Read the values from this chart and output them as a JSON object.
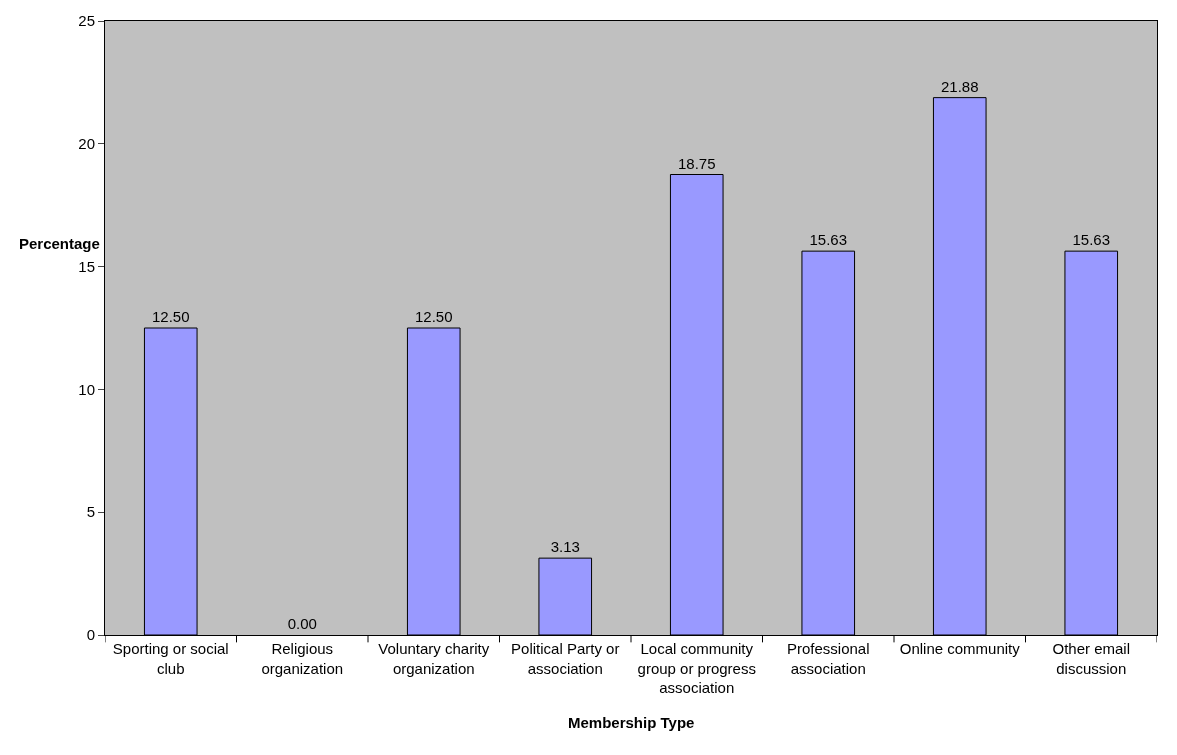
{
  "chart_data": {
    "type": "bar",
    "categories": [
      "Sporting or social club",
      "Religious organization",
      "Voluntary charity organization",
      "Political Party or association",
      "Local community group or progress association",
      "Professional association",
      "Online community",
      "Other email discussion"
    ],
    "values": [
      12.5,
      0.0,
      12.5,
      3.13,
      18.75,
      15.63,
      21.88,
      15.63
    ],
    "value_labels": [
      "12.50",
      "0.00",
      "12.50",
      "3.13",
      "18.75",
      "15.63",
      "21.88",
      "15.63"
    ],
    "color": "#9999ff",
    "xlabel": "Membership Type",
    "ylabel": "Percentage",
    "ylim": [
      0,
      25
    ],
    "yticks": [
      0,
      5,
      10,
      15,
      20,
      25
    ],
    "grid": false,
    "legend": false
  }
}
